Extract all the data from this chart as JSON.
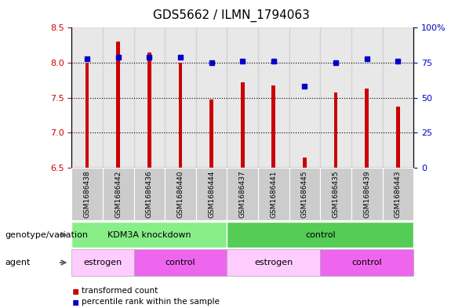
{
  "title": "GDS5662 / ILMN_1794063",
  "samples": [
    "GSM1686438",
    "GSM1686442",
    "GSM1686436",
    "GSM1686440",
    "GSM1686444",
    "GSM1686437",
    "GSM1686441",
    "GSM1686445",
    "GSM1686435",
    "GSM1686439",
    "GSM1686443"
  ],
  "transformed_counts": [
    8.0,
    8.3,
    8.15,
    8.0,
    7.47,
    7.72,
    7.68,
    6.65,
    7.58,
    7.63,
    7.38
  ],
  "percentile_ranks": [
    78,
    79,
    79,
    79,
    75,
    76,
    76,
    58,
    75,
    78,
    76
  ],
  "ylim_left": [
    6.5,
    8.5
  ],
  "ylim_right": [
    0,
    100
  ],
  "yticks_left": [
    6.5,
    7.0,
    7.5,
    8.0,
    8.5
  ],
  "yticks_right": [
    0,
    25,
    50,
    75,
    100
  ],
  "ytick_labels_right": [
    "0",
    "25",
    "50",
    "75",
    "100%"
  ],
  "bar_color": "#cc0000",
  "dot_color": "#0000cc",
  "bar_width": 0.12,
  "genotype_groups": [
    {
      "label": "KDM3A knockdown",
      "start": 0,
      "end": 5,
      "color": "#88ee88"
    },
    {
      "label": "control",
      "start": 5,
      "end": 11,
      "color": "#55cc55"
    }
  ],
  "agent_groups": [
    {
      "label": "estrogen",
      "start": 0,
      "end": 2,
      "color": "#ffccff"
    },
    {
      "label": "control",
      "start": 2,
      "end": 5,
      "color": "#ee66ee"
    },
    {
      "label": "estrogen",
      "start": 5,
      "end": 8,
      "color": "#ffccff"
    },
    {
      "label": "control",
      "start": 8,
      "end": 11,
      "color": "#ee66ee"
    }
  ],
  "legend_items": [
    {
      "label": "transformed count",
      "color": "#cc0000"
    },
    {
      "label": "percentile rank within the sample",
      "color": "#0000cc"
    }
  ],
  "genotype_label": "genotype/variation",
  "agent_label": "agent",
  "background_color": "#ffffff",
  "tick_label_color_left": "#cc0000",
  "tick_label_color_right": "#0000cc",
  "col_bg_color": "#cccccc",
  "gridline_color": "#000000"
}
